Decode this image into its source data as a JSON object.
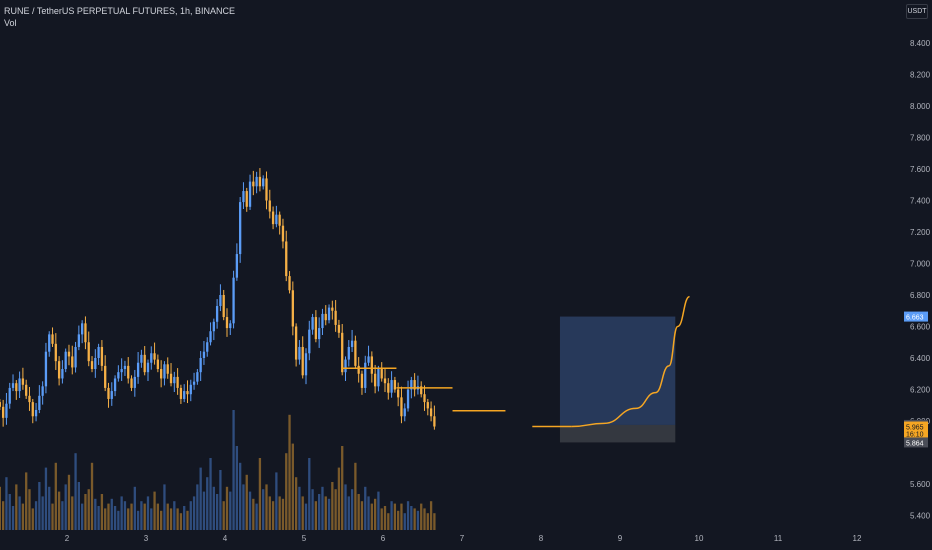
{
  "legend": {
    "symbol_line": "RUNE / TetherUS PERPETUAL FUTURES, 1h, BINANCE",
    "volume_label": "Vol"
  },
  "currency_button": "USDT",
  "colors": {
    "background": "#131722",
    "up": "#5b9cf6",
    "down": "#f5b047",
    "vol_up": "#2f4d7e",
    "vol_down": "#7a5a2b",
    "annotation": "#f5a623",
    "projection_box": "#2a3d61",
    "loss_box": "#3b3e45",
    "axis_text": "#b2b5be"
  },
  "chart_data": {
    "type": "candlestick",
    "y_axis_ticks": [
      "8.400",
      "8.200",
      "8.000",
      "7.800",
      "7.600",
      "7.400",
      "7.200",
      "7.000",
      "6.800",
      "6.600",
      "6.400",
      "6.200",
      "6.000",
      "5.600",
      "5.400"
    ],
    "x_axis_ticks": [
      "2",
      "3",
      "4",
      "5",
      "6",
      "7",
      "8",
      "9",
      "10",
      "11",
      "12"
    ],
    "x_range_days": [
      1.15,
      12.35
    ],
    "y_range": [
      5.28,
      8.56
    ],
    "price_labels": {
      "target": "6.663",
      "entry": "5.975",
      "current": "5.965",
      "countdown": "16:10",
      "stop": "5.864",
      "hidden_tick": "5.800"
    },
    "price_levels": {
      "target": 6.663,
      "entry": 5.975,
      "current": 5.965,
      "stop": 5.864
    },
    "candle_start_day": 1.15,
    "candle_step_days": 0.04167,
    "closes": [
      6.09,
      6.02,
      6.11,
      6.21,
      6.24,
      6.19,
      6.27,
      6.23,
      6.16,
      6.12,
      6.03,
      6.07,
      6.16,
      6.22,
      6.44,
      6.55,
      6.49,
      6.38,
      6.27,
      6.33,
      6.44,
      6.41,
      6.34,
      6.47,
      6.55,
      6.62,
      6.5,
      6.38,
      6.33,
      6.4,
      6.47,
      6.35,
      6.21,
      6.14,
      6.19,
      6.27,
      6.31,
      6.33,
      6.35,
      6.27,
      6.21,
      6.28,
      6.37,
      6.42,
      6.31,
      6.37,
      6.43,
      6.39,
      6.33,
      6.27,
      6.36,
      6.3,
      6.24,
      6.28,
      6.21,
      6.14,
      6.19,
      6.17,
      6.23,
      6.25,
      6.31,
      6.4,
      6.44,
      6.5,
      6.57,
      6.63,
      6.73,
      6.8,
      6.66,
      6.59,
      6.62,
      6.91,
      7.06,
      7.39,
      7.46,
      7.36,
      7.52,
      7.49,
      7.55,
      7.49,
      7.54,
      7.4,
      7.33,
      7.25,
      7.31,
      7.24,
      7.14,
      6.92,
      6.83,
      6.6,
      6.39,
      6.47,
      6.29,
      6.43,
      6.58,
      6.66,
      6.52,
      6.59,
      6.68,
      6.64,
      6.72,
      6.7,
      6.61,
      6.56,
      6.31,
      6.39,
      6.47,
      6.51,
      6.35,
      6.3,
      6.21,
      6.37,
      6.41,
      6.3,
      6.22,
      6.33,
      6.27,
      6.24,
      6.18,
      6.26,
      6.2,
      6.15,
      6.03,
      6.08,
      6.2,
      6.26,
      6.2,
      6.22,
      6.17,
      6.12,
      6.08,
      6.03,
      5.965
    ],
    "volumes": [
      90,
      60,
      110,
      75,
      50,
      95,
      70,
      55,
      120,
      85,
      45,
      60,
      100,
      70,
      130,
      90,
      55,
      140,
      80,
      60,
      95,
      115,
      70,
      160,
      100,
      55,
      75,
      85,
      140,
      65,
      50,
      75,
      45,
      55,
      65,
      50,
      40,
      70,
      60,
      45,
      55,
      90,
      40,
      60,
      55,
      70,
      45,
      80,
      55,
      40,
      95,
      55,
      45,
      60,
      45,
      35,
      50,
      40,
      60,
      70,
      95,
      130,
      80,
      110,
      150,
      90,
      75,
      125,
      60,
      90,
      80,
      250,
      175,
      140,
      95,
      115,
      80,
      65,
      55,
      150,
      85,
      95,
      70,
      60,
      120,
      70,
      65,
      160,
      240,
      180,
      110,
      90,
      70,
      55,
      150,
      85,
      60,
      75,
      90,
      70,
      65,
      100,
      85,
      130,
      175,
      95,
      70,
      85,
      140,
      75,
      60,
      90,
      70,
      55,
      65,
      80,
      45,
      50,
      35,
      60,
      55,
      40,
      55,
      35,
      60,
      50,
      45,
      40,
      55,
      45,
      35,
      60,
      35
    ],
    "annotations": {
      "support_lines": [
        {
          "x0": 5.47,
          "x1": 6.17,
          "price": 6.335
        },
        {
          "x0": 6.17,
          "x1": 6.88,
          "price": 6.21
        },
        {
          "x0": 6.88,
          "x1": 7.55,
          "price": 6.065
        },
        {
          "x0": 7.89,
          "x1": 8.39,
          "price": 5.965
        }
      ],
      "projection_box": {
        "x0": 8.24,
        "x1": 9.7,
        "top": 6.663,
        "bottom": 5.975
      },
      "loss_box": {
        "x0": 8.24,
        "x1": 9.7,
        "top": 5.975,
        "bottom": 5.864
      },
      "projection_curve": [
        [
          8.39,
          5.965
        ],
        [
          8.8,
          5.985
        ],
        [
          9.2,
          6.08
        ],
        [
          9.45,
          6.18
        ],
        [
          9.62,
          6.35
        ],
        [
          9.73,
          6.6
        ],
        [
          9.88,
          6.79
        ]
      ]
    }
  }
}
